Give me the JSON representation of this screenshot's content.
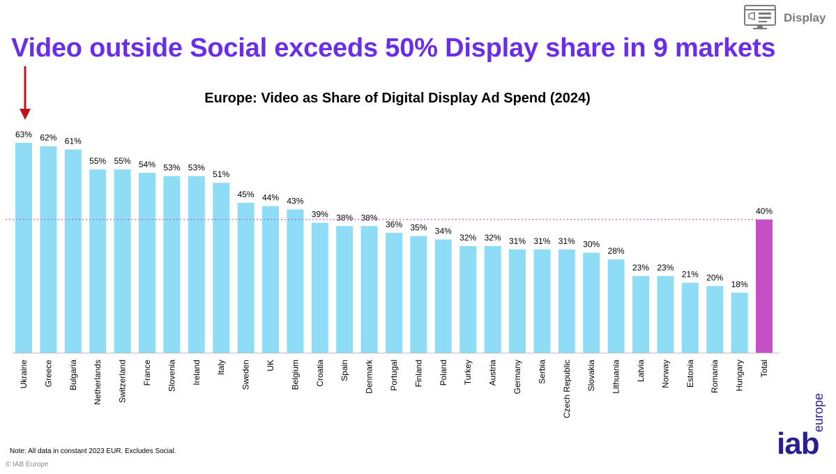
{
  "header": {
    "headline": "Video outside Social exceeds 50% Display share in 9 markets",
    "badge_label": "Display",
    "badge_icon": "display-ad-icon"
  },
  "chart_data": {
    "type": "bar",
    "title": "Europe: Video as Share of Digital Display Ad Spend (2024)",
    "xlabel": "",
    "ylabel": "",
    "ylim": [
      0,
      70
    ],
    "grid": false,
    "categories": [
      "Ukraine",
      "Greece",
      "Bulgaria",
      "Netherlands",
      "Switzerland",
      "France",
      "Slovenia",
      "Ireland",
      "Italy",
      "Sweden",
      "UK",
      "Belgium",
      "Croatia",
      "Spain",
      "Denmark",
      "Portugal",
      "Finland",
      "Poland",
      "Turkey",
      "Austria",
      "Germany",
      "Serbia",
      "Czech Republic",
      "Slovakia",
      "Lithuania",
      "Latvia",
      "Norway",
      "Estonia",
      "Romania",
      "Hungary",
      "Total"
    ],
    "values": [
      63,
      62,
      61,
      55,
      55,
      54,
      53,
      53,
      51,
      45,
      44,
      43,
      39,
      38,
      38,
      36,
      35,
      34,
      32,
      32,
      31,
      31,
      31,
      30,
      28,
      23,
      23,
      21,
      20,
      18,
      40
    ],
    "data_labels": [
      "63%",
      "62%",
      "61%",
      "55%",
      "55%",
      "54%",
      "53%",
      "53%",
      "51%",
      "45%",
      "44%",
      "43%",
      "39%",
      "38%",
      "38%",
      "36%",
      "35%",
      "34%",
      "32%",
      "32%",
      "31%",
      "31%",
      "31%",
      "30%",
      "28%",
      "23%",
      "23%",
      "21%",
      "20%",
      "18%",
      "40%"
    ],
    "reference_line": {
      "value": 40,
      "style": "dotted"
    },
    "highlight": {
      "category": "Ukraine",
      "marker": "arrow-down"
    },
    "colors": {
      "bar": "#8fdcf7",
      "total": "#c54fc4",
      "reference_line": "#c54fc4",
      "arrow": "#c0141a"
    }
  },
  "footer": {
    "note": "Note: All data in constant 2023 EUR. Excludes Social.",
    "copyright": "© IAB Europe",
    "logo_main": "iab",
    "logo_sub": "europe"
  }
}
